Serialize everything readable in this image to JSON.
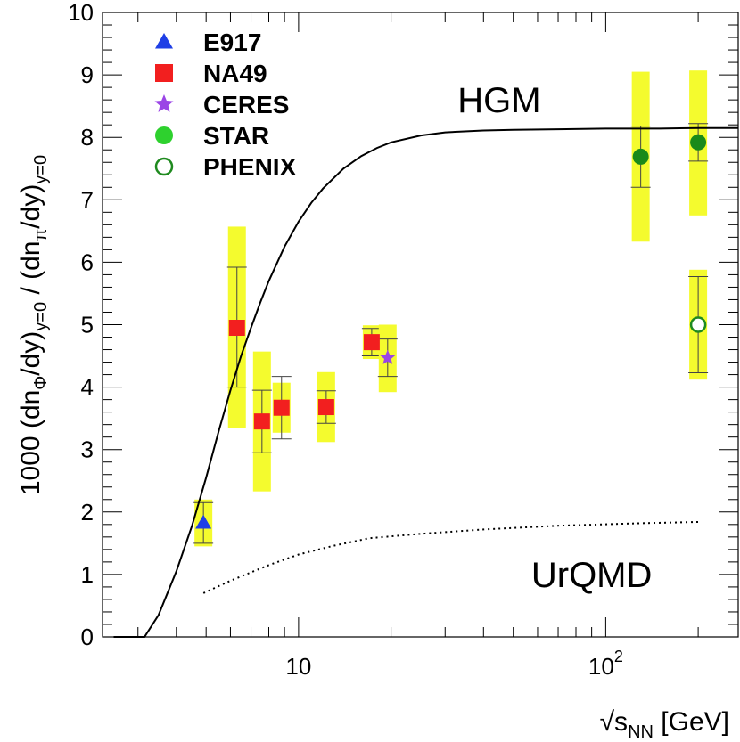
{
  "chart_data": {
    "type": "scatter",
    "x_scale": "log",
    "xlim": [
      2.3,
      270
    ],
    "ylim": [
      0,
      10
    ],
    "xlabel": {
      "main": "√s",
      "sub": "NN",
      "unit": " [GeV]"
    },
    "ylabel": {
      "p1": "1000 (dn",
      "s1": "Φ",
      "p2": "/dy)",
      "s2": "y=0",
      "p3": " / (dn",
      "s3": "π",
      "p4": "/dy)",
      "s4": "y=0"
    },
    "y_ticks": [
      {
        "value": 0,
        "label": "0"
      },
      {
        "value": 1,
        "label": "1"
      },
      {
        "value": 2,
        "label": "2"
      },
      {
        "value": 3,
        "label": "3"
      },
      {
        "value": 4,
        "label": "4"
      },
      {
        "value": 5,
        "label": "5"
      },
      {
        "value": 6,
        "label": "6"
      },
      {
        "value": 7,
        "label": "7"
      },
      {
        "value": 8,
        "label": "8"
      },
      {
        "value": 9,
        "label": "9"
      },
      {
        "value": 10,
        "label": "10"
      }
    ],
    "x_major_ticks": [
      {
        "value": 10,
        "base": "10",
        "exp": ""
      },
      {
        "value": 100,
        "base": "10",
        "exp": "2"
      }
    ],
    "x_minor_ticks": [
      3,
      4,
      5,
      6,
      7,
      8,
      9,
      20,
      30,
      40,
      50,
      60,
      70,
      80,
      90,
      200
    ],
    "legend": [
      {
        "name": "E917",
        "marker": "triangle",
        "color": "#1f3fe6"
      },
      {
        "name": "NA49",
        "marker": "square",
        "color": "#f21f1f"
      },
      {
        "name": "CERES",
        "marker": "star",
        "color": "#9b45e6"
      },
      {
        "name": "STAR",
        "marker": "circle",
        "color": "#2ed12e"
      },
      {
        "name": "PHENIX",
        "marker": "open-circle",
        "color": "#1f8a1f"
      }
    ],
    "series": [
      {
        "name": "E917",
        "marker": "triangle",
        "color": "#1f3fe6",
        "points": [
          {
            "x": 4.9,
            "y": 1.83,
            "stat": [
              1.5,
              2.15
            ],
            "sys": [
              1.45,
              2.2
            ]
          }
        ]
      },
      {
        "name": "NA49",
        "marker": "square",
        "color": "#f21f1f",
        "points": [
          {
            "x": 6.3,
            "y": 4.95,
            "stat": [
              4.0,
              5.92
            ],
            "sys": [
              3.35,
              6.57
            ]
          },
          {
            "x": 7.6,
            "y": 3.45,
            "stat": [
              2.95,
              3.95
            ],
            "sys": [
              2.33,
              4.57
            ]
          },
          {
            "x": 8.8,
            "y": 3.67,
            "stat": [
              3.17,
              4.17
            ],
            "sys": [
              3.27,
              4.07
            ]
          },
          {
            "x": 12.3,
            "y": 3.68,
            "stat": [
              3.42,
              3.94
            ],
            "sys": [
              3.12,
              4.24
            ]
          },
          {
            "x": 17.3,
            "y": 4.72,
            "stat": [
              4.5,
              4.94
            ],
            "sys": [
              4.45,
              4.99
            ]
          }
        ]
      },
      {
        "name": "CERES",
        "marker": "star",
        "color": "#9b45e6",
        "points": [
          {
            "x": 19.5,
            "y": 4.47,
            "stat": [
              4.17,
              4.77
            ],
            "sys": [
              3.92,
              5.0
            ]
          }
        ]
      },
      {
        "name": "STAR",
        "marker": "circle",
        "color": "#1a8a1a",
        "points": [
          {
            "x": 130,
            "y": 7.69,
            "stat": [
              7.2,
              8.18
            ],
            "sys": [
              6.33,
              9.05
            ]
          },
          {
            "x": 200,
            "y": 7.92,
            "stat": [
              7.62,
              8.22
            ],
            "sys": [
              6.75,
              9.07
            ]
          }
        ]
      },
      {
        "name": "PHENIX",
        "marker": "open-circle",
        "color": "#1f8a1f",
        "points": [
          {
            "x": 200,
            "y": 5.0,
            "stat": [
              4.23,
              5.77
            ],
            "sys": [
              4.12,
              5.88
            ]
          }
        ]
      }
    ],
    "curves": [
      {
        "name": "HGM",
        "style": "solid",
        "x": [
          2.5,
          3.15,
          3.5,
          4.0,
          4.5,
          5.0,
          5.5,
          6.0,
          6.5,
          7.0,
          7.5,
          8.0,
          9.0,
          10,
          11,
          12,
          14,
          16,
          18,
          20,
          25,
          30,
          40,
          50,
          70,
          100,
          150,
          200,
          270
        ],
        "y": [
          0,
          0,
          0.35,
          1.05,
          1.78,
          2.55,
          3.3,
          3.95,
          4.5,
          4.95,
          5.35,
          5.7,
          6.25,
          6.65,
          6.95,
          7.18,
          7.5,
          7.7,
          7.83,
          7.92,
          8.03,
          8.08,
          8.11,
          8.12,
          8.13,
          8.14,
          8.14,
          8.15,
          8.15
        ]
      },
      {
        "name": "UrQMD",
        "style": "dotted",
        "x": [
          4.9,
          6,
          8,
          10,
          13,
          17,
          25,
          40,
          70,
          130,
          200
        ],
        "y": [
          0.7,
          0.9,
          1.15,
          1.32,
          1.46,
          1.58,
          1.65,
          1.72,
          1.78,
          1.82,
          1.84
        ]
      }
    ],
    "annotations": [
      {
        "text": "HGM",
        "x": 45,
        "y": 8.4
      },
      {
        "text": "UrQMD",
        "x": 90,
        "y": 0.8
      }
    ]
  }
}
